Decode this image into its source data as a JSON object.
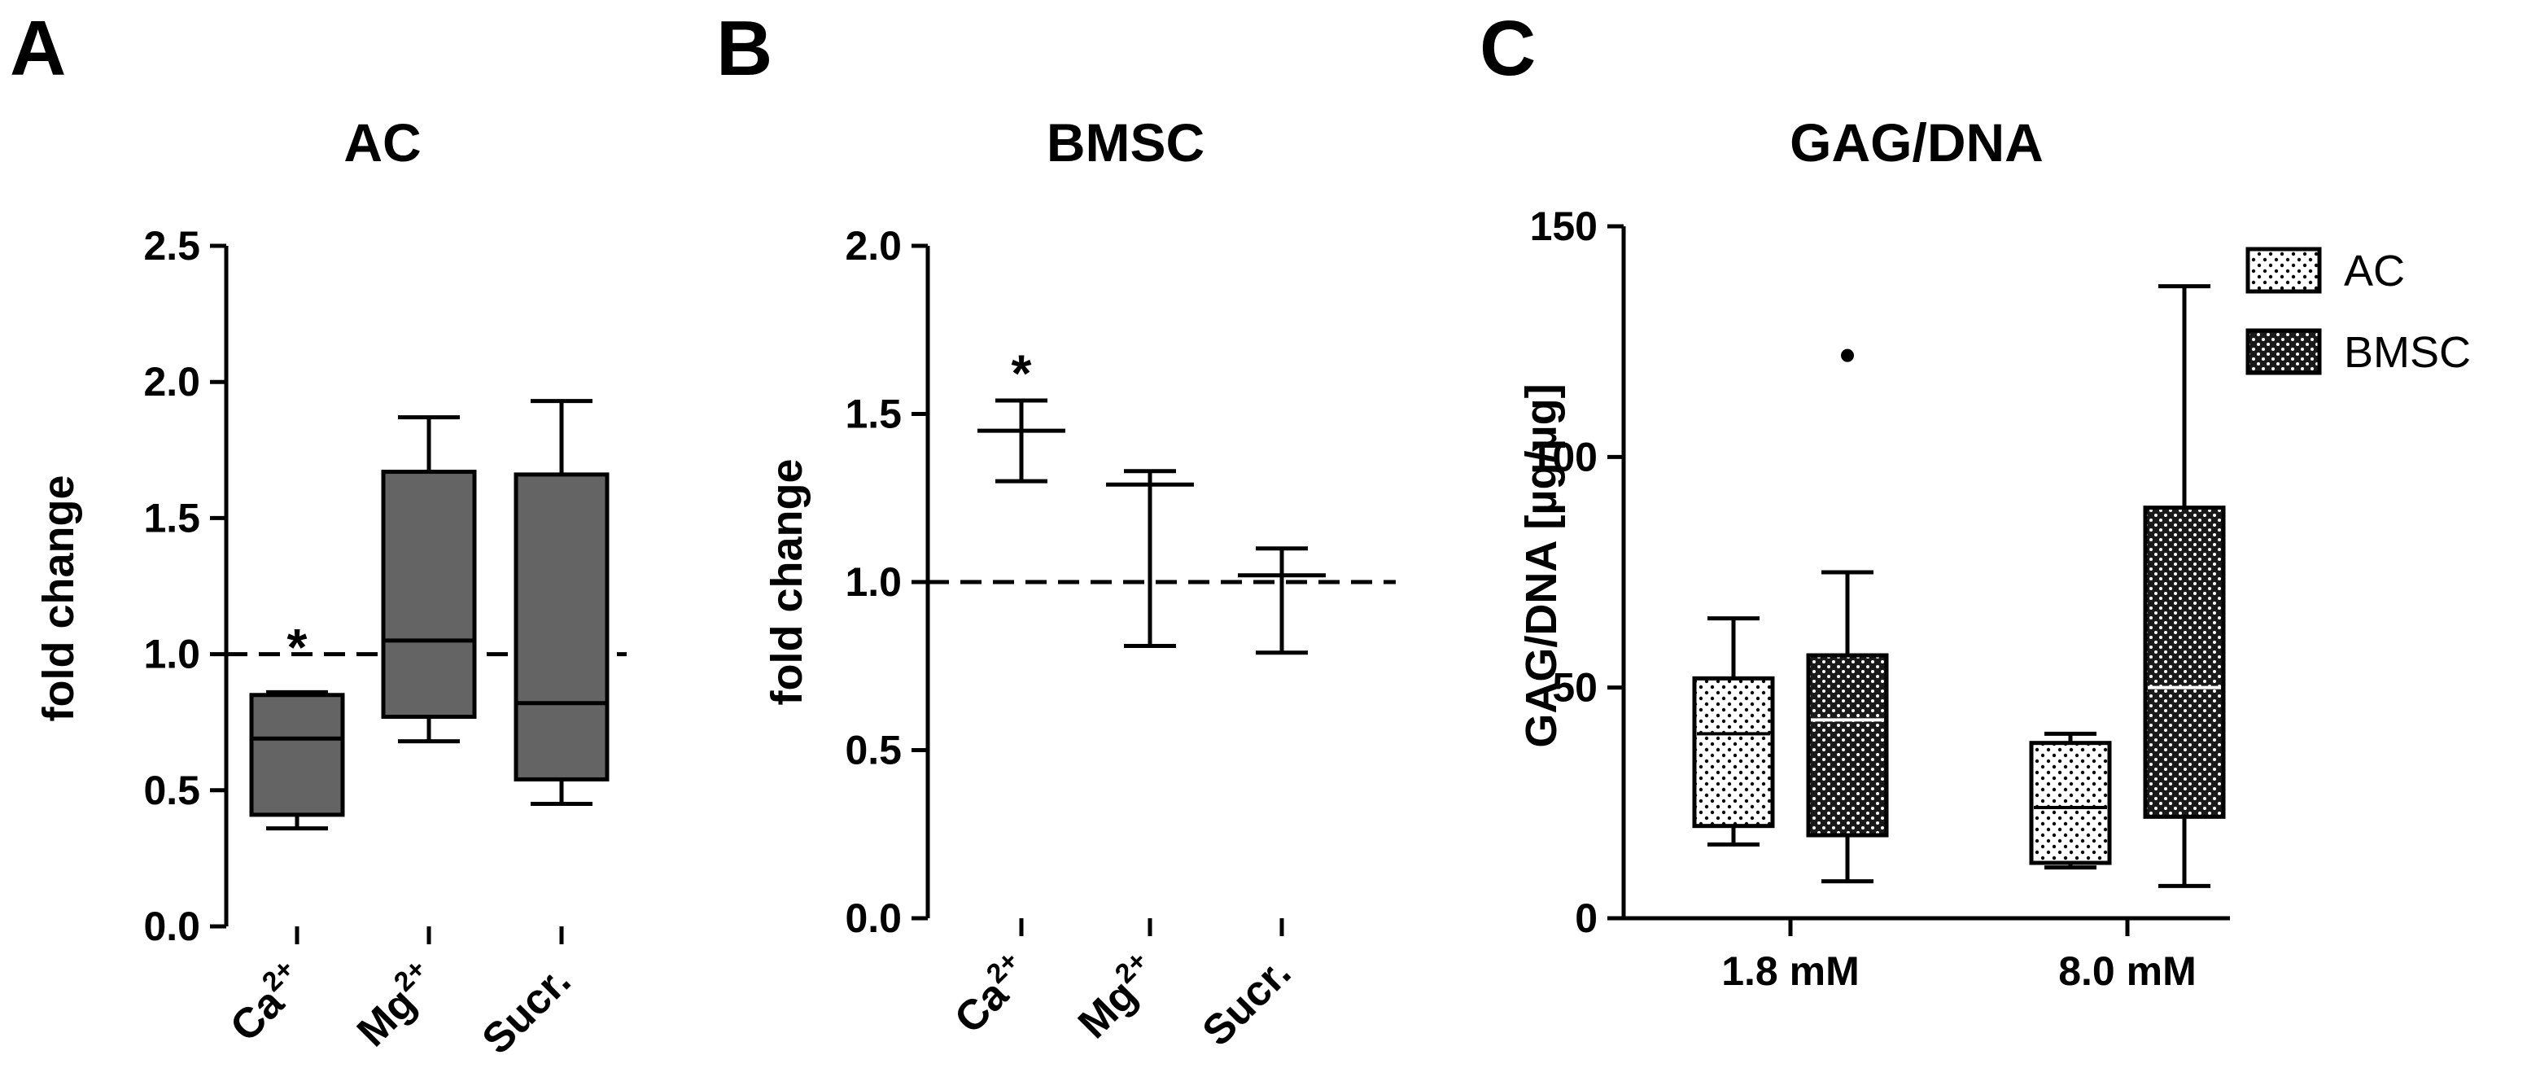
{
  "panels": {
    "A": "A",
    "B": "B",
    "C": "C"
  },
  "colors": {
    "box_fill_A": "#646464",
    "stroke": "#000000",
    "pattern_bg": "#ffffff"
  },
  "chart_data": [
    {
      "panel": "A",
      "type": "box",
      "title": "AC",
      "ylabel": "fold change",
      "xlabel": "",
      "ylim": [
        0,
        2.5
      ],
      "yticks": [
        "0.0",
        "0.5",
        "1.0",
        "1.5",
        "2.0",
        "2.5"
      ],
      "reference_line": 1.0,
      "categories": [
        {
          "base": "Ca",
          "sup": "2+"
        },
        {
          "base": "Mg",
          "sup": "2+"
        },
        {
          "base": "Sucr.",
          "sup": ""
        }
      ],
      "boxes": [
        {
          "min": 0.36,
          "q1": 0.41,
          "median": 0.69,
          "q3": 0.85,
          "max": 0.86
        },
        {
          "min": 0.68,
          "q1": 0.77,
          "median": 1.05,
          "q3": 1.67,
          "max": 1.87
        },
        {
          "min": 0.45,
          "q1": 0.54,
          "median": 0.82,
          "q3": 1.66,
          "max": 1.93
        }
      ],
      "annotations": [
        {
          "category": 0,
          "text": "*",
          "y": 1.05
        }
      ]
    },
    {
      "panel": "B",
      "type": "box",
      "title": "BMSC",
      "ylabel": "fold change",
      "xlabel": "",
      "ylim": [
        0,
        2.0
      ],
      "yticks": [
        "0.0",
        "0.5",
        "1.0",
        "1.5",
        "2.0"
      ],
      "reference_line": 1.0,
      "categories": [
        {
          "base": "Ca",
          "sup": "2+"
        },
        {
          "base": "Mg",
          "sup": "2+"
        },
        {
          "base": "Sucr.",
          "sup": ""
        }
      ],
      "boxes": [
        {
          "min": 1.3,
          "median": 1.45,
          "max": 1.54
        },
        {
          "min": 0.81,
          "median": 1.29,
          "max": 1.33
        },
        {
          "min": 0.79,
          "median": 1.02,
          "max": 1.1
        }
      ],
      "annotations": [
        {
          "category": 0,
          "text": "*",
          "y": 1.64
        }
      ]
    },
    {
      "panel": "C",
      "type": "box",
      "title": "GAG/DNA",
      "ylabel": "GAG/DNA [µg/µg]",
      "xlabel": "",
      "ylim": [
        0,
        150
      ],
      "yticks": [
        "0",
        "50",
        "100",
        "150"
      ],
      "categories": [
        "1.8 mM",
        "8.0 mM"
      ],
      "series": [
        {
          "name": "AC",
          "boxes": [
            {
              "min": 16,
              "q1": 20,
              "median": 40,
              "q3": 52,
              "max": 65
            },
            {
              "min": 11,
              "q1": 12,
              "median": 24,
              "q3": 38,
              "max": 40
            }
          ]
        },
        {
          "name": "BMSC",
          "boxes": [
            {
              "min": 8,
              "q1": 18,
              "median": 43,
              "q3": 57,
              "max": 75,
              "outliers": [
                122
              ]
            },
            {
              "min": 7,
              "q1": 22,
              "median": 50,
              "q3": 89,
              "max": 137
            }
          ]
        }
      ],
      "legend_position": "top-right"
    }
  ]
}
